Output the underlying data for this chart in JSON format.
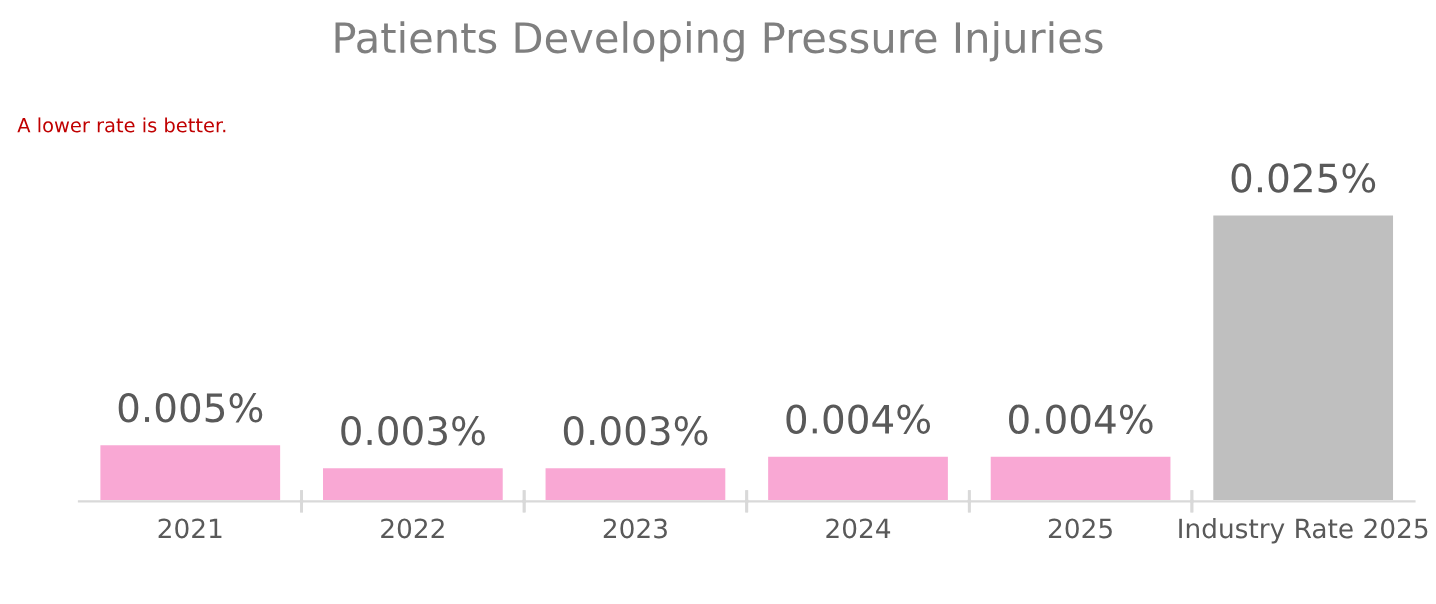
{
  "chart_data": {
    "type": "bar",
    "title": "Patients Developing Pressure Injuries",
    "annotations": [
      "A lower rate is better."
    ],
    "categories": [
      "2021",
      "2022",
      "2023",
      "2024",
      "2025",
      "Industry Rate 2025"
    ],
    "values": [
      0.005,
      0.003,
      0.003,
      0.004,
      0.004,
      0.025
    ],
    "colors": [
      "#f9a8d4",
      "#f9a8d4",
      "#f9a8d4",
      "#f9a8d4",
      "#f9a8d4",
      "#bfbfbf"
    ],
    "value_labels": [
      "0.005%",
      "0.003%",
      "0.003%",
      "0.004%",
      "0.004%",
      "0.025%"
    ]
  }
}
